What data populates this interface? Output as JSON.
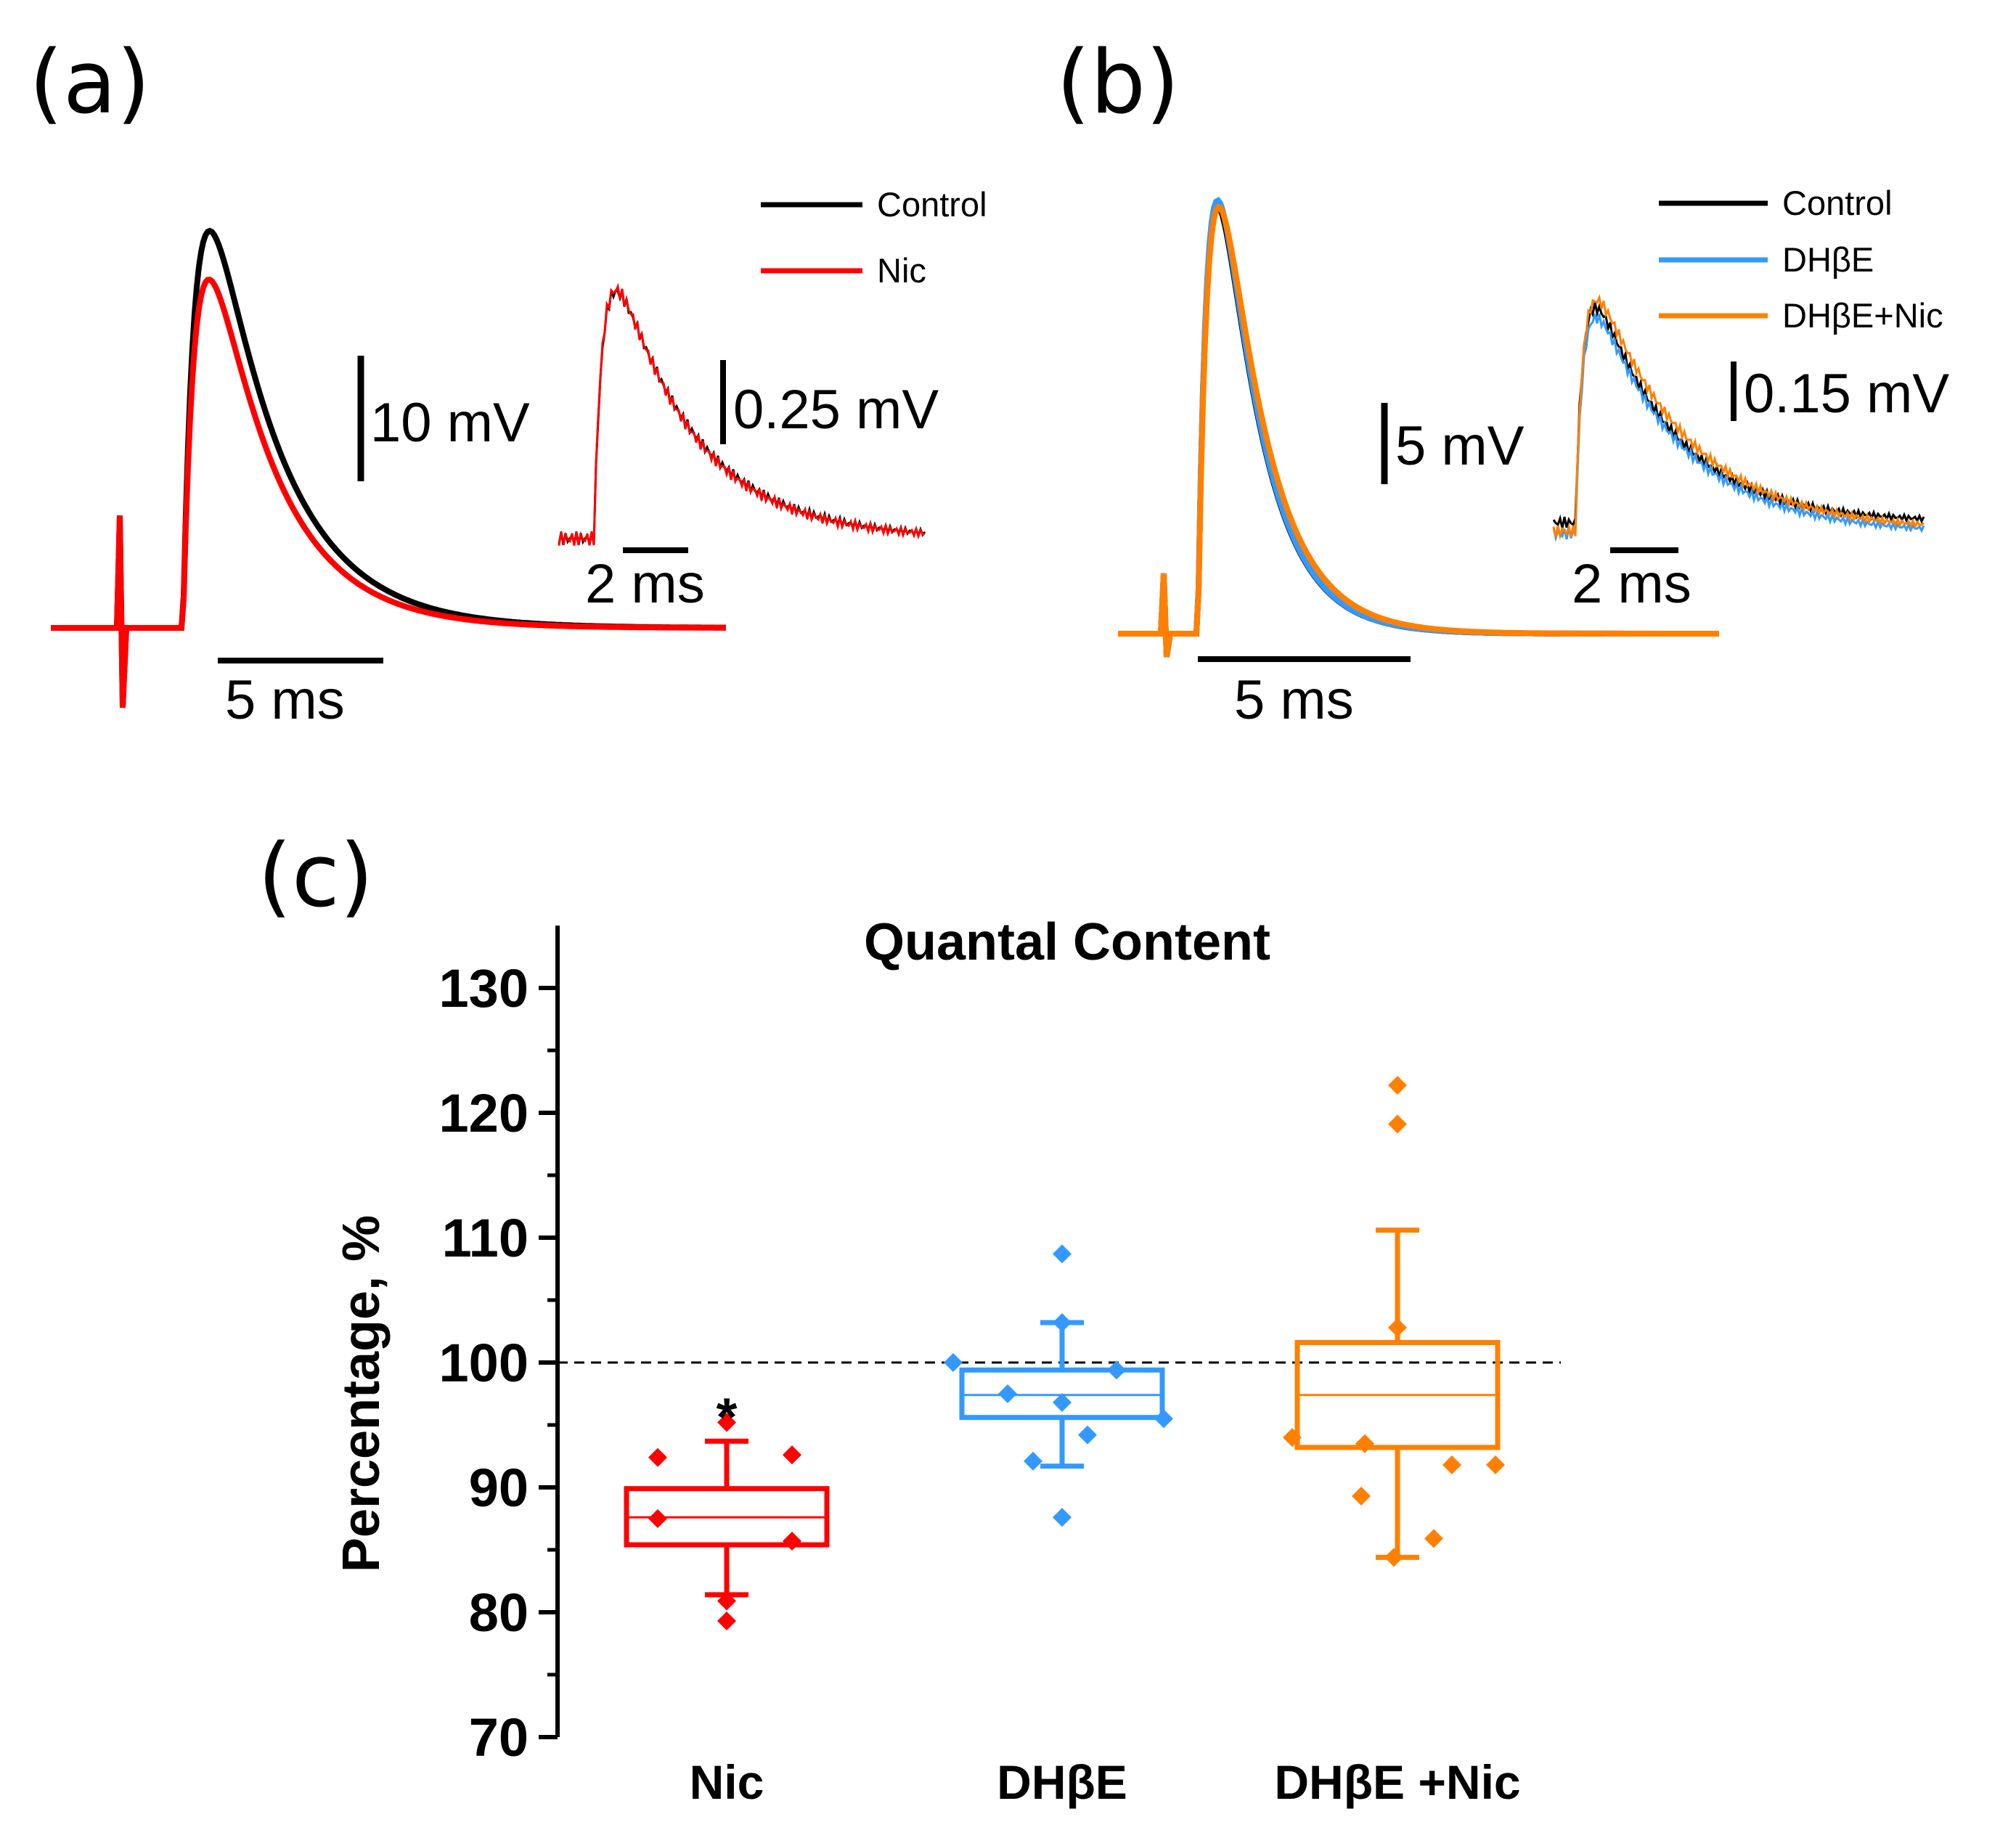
{
  "panels": {
    "a": {
      "label": "(a)",
      "legend": [
        {
          "name": "Control",
          "color": "#000000"
        },
        {
          "name": "Nic",
          "color": "#ff0000"
        }
      ],
      "scale_main_v": "10 mV",
      "scale_main_t": "5 ms",
      "scale_inset_v": "0.25 mV",
      "scale_inset_t": "2 ms"
    },
    "b": {
      "label": "(b)",
      "legend": [
        {
          "name": "Control",
          "color": "#000000"
        },
        {
          "name": "DHβE",
          "color": "#3399ff"
        },
        {
          "name": "DHβE+Nic",
          "color": "#ff8000"
        }
      ],
      "scale_main_v": "5 mV",
      "scale_main_t": "5 ms",
      "scale_inset_v": "0.15 mV",
      "scale_inset_t": "2 ms"
    },
    "c": {
      "label": "(c)"
    }
  },
  "chart_data": {
    "type": "box",
    "title": "Quantal Content",
    "ylabel": "Percentage, %",
    "xlabel": "",
    "ylim": [
      70,
      135
    ],
    "yticks": [
      70,
      80,
      90,
      100,
      110,
      120,
      130
    ],
    "reference_line": 100,
    "categories": [
      "Nic",
      "DHβE",
      "DHβE +Nic"
    ],
    "colors": [
      "#ff0000",
      "#3399ff",
      "#ff8000"
    ],
    "significance": [
      "*",
      "",
      ""
    ],
    "boxes": [
      {
        "q1": 85.4,
        "median": 87.6,
        "q3": 89.9,
        "whisker_low": 81.4,
        "whisker_high": 93.7
      },
      {
        "q1": 95.6,
        "median": 97.4,
        "q3": 99.4,
        "whisker_low": 91.7,
        "whisker_high": 103.2
      },
      {
        "q1": 93.2,
        "median": 97.4,
        "q3": 101.6,
        "whisker_low": 84.4,
        "whisker_high": 110.6
      }
    ],
    "points": [
      [
        92.4,
        87.5,
        79.3,
        80.9,
        95.2,
        92.6,
        85.7
      ],
      [
        100.0,
        97.5,
        92.1,
        87.6,
        108.7,
        96.8,
        103.2,
        94.2,
        99.4,
        95.5
      ],
      [
        94.0,
        89.3,
        93.5,
        84.4,
        122.2,
        119.1,
        102.8,
        91.8,
        85.9,
        91.8
      ]
    ]
  }
}
